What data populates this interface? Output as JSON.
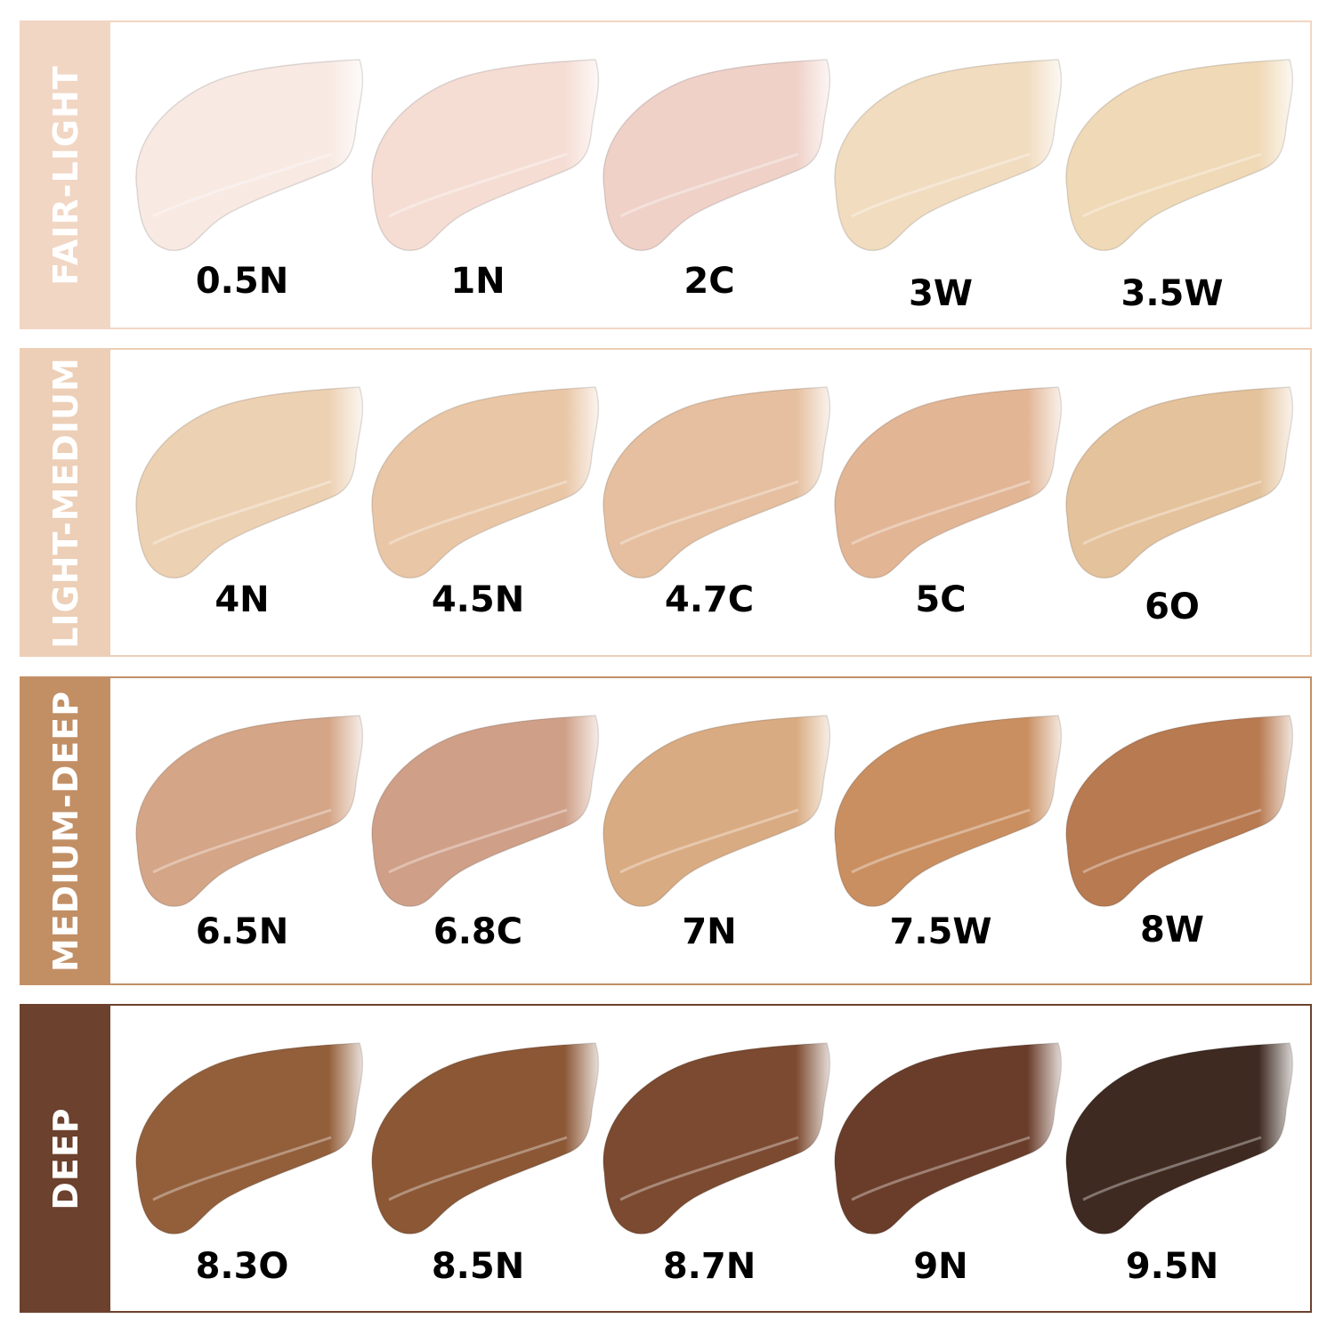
{
  "groups": [
    {
      "name": "FAIR-LIGHT",
      "color": "#f1d6c4",
      "shades": [
        {
          "label": "0.5N",
          "color": "#f8e9e3"
        },
        {
          "label": "1N",
          "color": "#f5ddd4"
        },
        {
          "label": "2C",
          "color": "#efd1c8"
        },
        {
          "label": "3W",
          "color": "#f1dcc0"
        },
        {
          "label": "3.5W",
          "color": "#f0d9b7"
        }
      ]
    },
    {
      "name": "LIGHT-MEDIUM",
      "color": "#eccfb6",
      "shades": [
        {
          "label": "4N",
          "color": "#edd1b3"
        },
        {
          "label": "4.5N",
          "color": "#e9c6a6"
        },
        {
          "label": "4.7C",
          "color": "#e5bf9f"
        },
        {
          "label": "5C",
          "color": "#e2b595"
        },
        {
          "label": "6O",
          "color": "#e4c29b"
        }
      ]
    },
    {
      "name": "MEDIUM-DEEP",
      "color": "#c28f65",
      "shades": [
        {
          "label": "6.5N",
          "color": "#d4a587"
        },
        {
          "label": "6.8C",
          "color": "#cf9f87"
        },
        {
          "label": "7N",
          "color": "#d9ab82"
        },
        {
          "label": "7.5W",
          "color": "#c98f61"
        },
        {
          "label": "8W",
          "color": "#b87a51"
        }
      ]
    },
    {
      "name": "DEEP",
      "color": "#6c412d",
      "shades": [
        {
          "label": "8.3O",
          "color": "#935f3b"
        },
        {
          "label": "8.5N",
          "color": "#8b5735"
        },
        {
          "label": "8.7N",
          "color": "#7c4a30"
        },
        {
          "label": "9N",
          "color": "#6a3d2a"
        },
        {
          "label": "9.5N",
          "color": "#3f2a21"
        }
      ]
    }
  ]
}
